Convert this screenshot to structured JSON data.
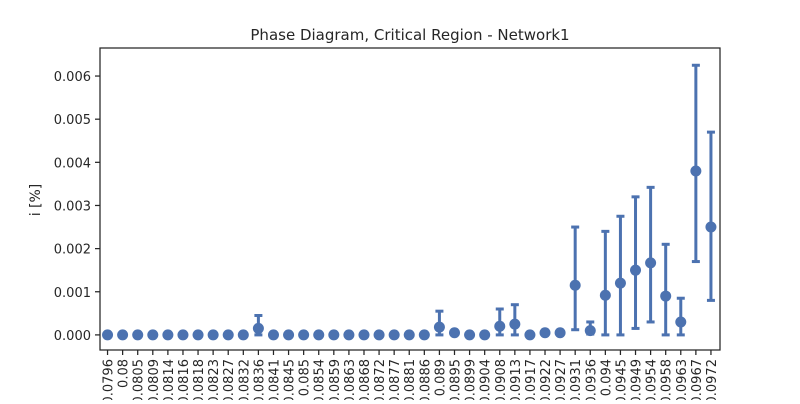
{
  "chart_data": {
    "type": "scatter",
    "title": "Phase Diagram, Critical Region - Network1",
    "xlabel": "",
    "ylabel": "i [%]",
    "ylim": [
      -0.00035,
      0.00665
    ],
    "yticks": [
      {
        "value": 0.0,
        "label": "0.000"
      },
      {
        "value": 0.001,
        "label": "0.001"
      },
      {
        "value": 0.002,
        "label": "0.002"
      },
      {
        "value": 0.003,
        "label": "0.003"
      },
      {
        "value": 0.004,
        "label": "0.004"
      },
      {
        "value": 0.005,
        "label": "0.005"
      },
      {
        "value": 0.006,
        "label": "0.006"
      }
    ],
    "categories": [
      "0.0796",
      "0.08",
      "0.0805",
      "0.0809",
      "0.0814",
      "0.0816",
      "0.0818",
      "0.0823",
      "0.0827",
      "0.0832",
      "0.0836",
      "0.0841",
      "0.0845",
      "0.085",
      "0.0854",
      "0.0859",
      "0.0863",
      "0.0868",
      "0.0872",
      "0.0877",
      "0.0881",
      "0.0886",
      "0.089",
      "0.0895",
      "0.0899",
      "0.0904",
      "0.0908",
      "0.0913",
      "0.0917",
      "0.0922",
      "0.0927",
      "0.0931",
      "0.0936",
      "0.094",
      "0.0945",
      "0.0949",
      "0.0954",
      "0.0958",
      "0.0963",
      "0.0967",
      "0.0972"
    ],
    "series": [
      {
        "values": [
          0,
          0,
          0,
          0,
          0,
          0,
          0,
          0,
          0,
          0,
          0.00015,
          0,
          0,
          0,
          0,
          0,
          0,
          0,
          0,
          0,
          0,
          0,
          0.00018,
          5e-05,
          0,
          0,
          0.0002,
          0.00025,
          0,
          5e-05,
          5e-05,
          0.00115,
          0.0001,
          0.00092,
          0.0012,
          0.0015,
          0.00167,
          0.0009,
          0.0003,
          0.0038,
          0.0025
        ],
        "err_low": [
          0,
          0,
          0,
          0,
          0,
          0,
          0,
          0,
          0,
          0,
          0,
          0,
          0,
          0,
          0,
          0,
          0,
          0,
          0,
          0,
          0,
          0,
          0,
          0,
          0,
          0,
          0,
          0,
          0,
          0,
          0,
          0.00012,
          2e-05,
          0,
          0,
          0.00015,
          0.0003,
          0,
          0,
          0.0017,
          0.0008
        ],
        "err_high": [
          0,
          0,
          0,
          0,
          0,
          0,
          0,
          0,
          0,
          0,
          0.00045,
          0,
          0,
          0,
          0,
          0,
          0,
          0,
          0,
          0,
          0,
          0,
          0.00055,
          8e-05,
          0,
          0,
          0.0006,
          0.0007,
          0,
          8e-05,
          8e-05,
          0.0025,
          0.0003,
          0.0024,
          0.00275,
          0.0032,
          0.00342,
          0.0021,
          0.00085,
          0.00625,
          0.0047
        ]
      }
    ],
    "color": "#4c72b0",
    "grid": false
  }
}
